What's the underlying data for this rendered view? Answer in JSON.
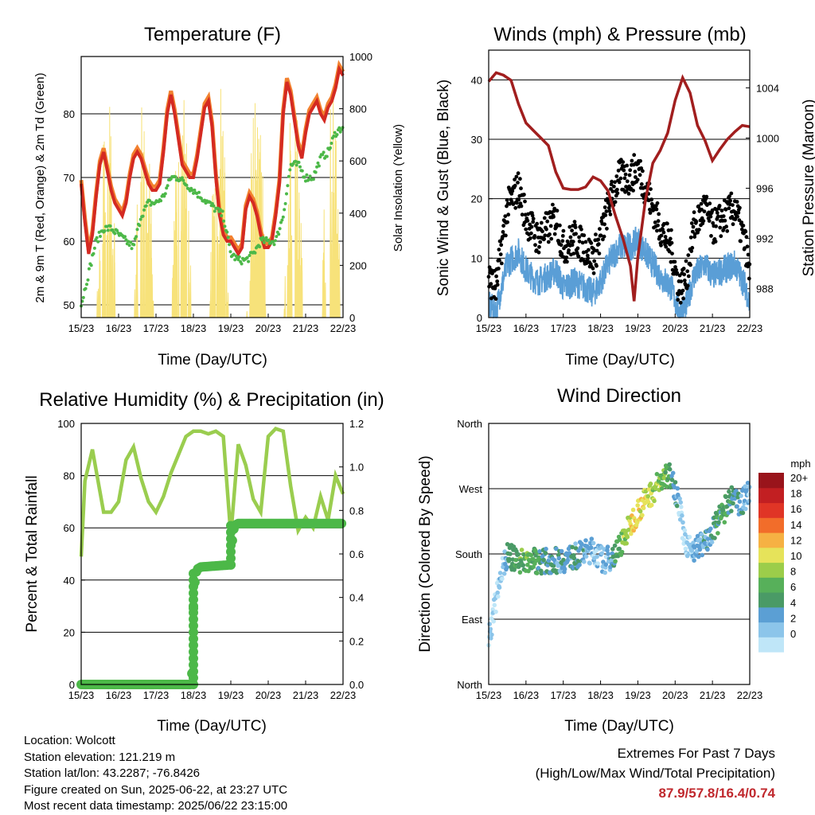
{
  "panels": {
    "temperature": {
      "title": "Temperature (F)",
      "xlabel": "Time (Day/UTC)",
      "ylabel_left": "2m & 9m T (Red, Orange) & 2m Td (Green)",
      "ylabel_right": "Solar Insolation (Yellow)"
    },
    "winds": {
      "title": "Winds (mph) & Pressure (mb)",
      "xlabel": "Time (Day/UTC)",
      "ylabel_left": "Sonic Wind & Gust (Blue, Black)",
      "ylabel_right": "Station Pressure (Maroon)"
    },
    "humidity": {
      "title": "Relative Humidity (%) & Precipitation (in)",
      "xlabel": "Time (Day/UTC)",
      "ylabel_left": "Percent & Total Rainfall"
    },
    "direction": {
      "title": "Wind Direction",
      "xlabel": "Time (Day/UTC)",
      "ylabel_left": "Direction (Colored By Speed)",
      "legend_title": "mph"
    }
  },
  "info": {
    "location": "Location: Wolcott",
    "elevation": "Station elevation: 121.219 m",
    "latlon": "Station lat/lon: 43.2287; -76.8426",
    "created": "Figure created on Sun, 2025-06-22, at 23:27 UTC",
    "recent": "Most recent data timestamp: 2025/06/22 23:15:00"
  },
  "extremes": {
    "heading": "Extremes For Past 7 Days",
    "subheading": "(High/Low/Max Wind/Total Precipitation)",
    "values": "87.9/57.8/16.4/0.74"
  },
  "colors": {
    "temp_2m": "#d42a22",
    "temp_9m": "#f2812f",
    "dewpoint": "#4cb848",
    "solar": "#f7e27a",
    "wind": "#5a9ed6",
    "gust": "#000000",
    "pressure": "#a11e1e",
    "rh": "#9acd4f",
    "precip": "#4cb848",
    "speed_scale": [
      "#bfe6f8",
      "#8cc5ea",
      "#5b9fd4",
      "#4a9a66",
      "#57b05a",
      "#9ccd4a",
      "#e6e35a",
      "#f6b143",
      "#f26d2a",
      "#e03526",
      "#c21f22",
      "#99141b"
    ]
  },
  "chart_data": [
    {
      "type": "line",
      "panel": "temperature",
      "x_ticks": [
        "15/23",
        "16/23",
        "17/23",
        "18/23",
        "19/23",
        "20/23",
        "21/23",
        "22/23"
      ],
      "x_range": [
        0,
        7
      ],
      "ylim": [
        48,
        89
      ],
      "yticks_left": [
        50,
        60,
        70,
        80
      ],
      "ylim_right": [
        0,
        1000
      ],
      "yticks_right": [
        0,
        200,
        400,
        600,
        800,
        1000
      ],
      "grid": "horizontal",
      "series": [
        {
          "key": "temp_2m",
          "x": [
            0,
            0.1,
            0.2,
            0.3,
            0.4,
            0.5,
            0.6,
            0.7,
            0.8,
            0.9,
            1.0,
            1.1,
            1.2,
            1.3,
            1.4,
            1.5,
            1.6,
            1.7,
            1.8,
            1.9,
            2.0,
            2.1,
            2.2,
            2.3,
            2.4,
            2.5,
            2.6,
            2.7,
            2.8,
            2.9,
            3.0,
            3.1,
            3.2,
            3.3,
            3.4,
            3.5,
            3.6,
            3.7,
            3.8,
            3.9,
            4.0,
            4.1,
            4.2,
            4.3,
            4.4,
            4.5,
            4.6,
            4.7,
            4.8,
            4.9,
            5.0,
            5.1,
            5.2,
            5.3,
            5.4,
            5.5,
            5.6,
            5.7,
            5.8,
            5.9,
            6.0,
            6.1,
            6.2,
            6.3,
            6.4,
            6.5,
            6.6,
            6.7,
            6.8,
            6.9,
            7.0
          ],
          "y": [
            69,
            63,
            58,
            61,
            67,
            72,
            74,
            71,
            68,
            66,
            65,
            64,
            66,
            70,
            73,
            74,
            73,
            71,
            69,
            68,
            68,
            69,
            74,
            80,
            83,
            80,
            76,
            72,
            71,
            70,
            70,
            73,
            77,
            81,
            82,
            78,
            70,
            64,
            61,
            60,
            60,
            59,
            58,
            59,
            65,
            67,
            66,
            64,
            61,
            59,
            59,
            60,
            64,
            69,
            80,
            85,
            83,
            79,
            75,
            73,
            77,
            80,
            81,
            82,
            80,
            79,
            81,
            82,
            84,
            87,
            86
          ]
        },
        {
          "key": "dewpoint",
          "x": [
            0,
            0.2,
            0.4,
            0.6,
            0.8,
            1.0,
            1.2,
            1.4,
            1.6,
            1.8,
            2.0,
            2.2,
            2.4,
            2.6,
            2.8,
            3.0,
            3.2,
            3.4,
            3.6,
            3.8,
            4.0,
            4.2,
            4.4,
            4.6,
            4.8,
            5.0,
            5.2,
            5.4,
            5.6,
            5.8,
            6.0,
            6.2,
            6.4,
            6.6,
            6.8,
            7.0
          ],
          "y": [
            50,
            55,
            60,
            62,
            62,
            61,
            60,
            59,
            64,
            66,
            66,
            67,
            70,
            70,
            69,
            68,
            67,
            66,
            65,
            64,
            58,
            57,
            57,
            58,
            60,
            60,
            60,
            64,
            72,
            72,
            70,
            70,
            73,
            74,
            77,
            78
          ]
        },
        {
          "key": "solar",
          "label": "Solar Insolation",
          "axis": "right"
        }
      ]
    },
    {
      "type": "scatter",
      "panel": "winds",
      "x_ticks": [
        "15/23",
        "16/23",
        "17/23",
        "18/23",
        "19/23",
        "20/23",
        "21/23",
        "22/23"
      ],
      "x_range": [
        0,
        7
      ],
      "ylim": [
        0,
        45
      ],
      "yticks_left": [
        0,
        10,
        20,
        30,
        40
      ],
      "ylim_right": [
        985.7,
        1007
      ],
      "yticks_right": [
        988,
        992,
        996,
        1000,
        1004
      ],
      "grid": "horizontal",
      "series": [
        {
          "key": "pressure",
          "type": "line",
          "axis": "right",
          "x": [
            0,
            0.2,
            0.4,
            0.6,
            0.8,
            1.0,
            1.2,
            1.4,
            1.6,
            1.8,
            2.0,
            2.2,
            2.4,
            2.6,
            2.8,
            3.0,
            3.2,
            3.4,
            3.6,
            3.8,
            3.9,
            4.0,
            4.2,
            4.4,
            4.6,
            4.8,
            5.0,
            5.2,
            5.4,
            5.6,
            5.8,
            6.0,
            6.2,
            6.4,
            6.6,
            6.8,
            7.0
          ],
          "y": [
            1004.5,
            1005.2,
            1005,
            1004.6,
            1002.7,
            1001.2,
            1000.6,
            1000,
            999.4,
            997.3,
            996,
            995.9,
            995.9,
            996.1,
            996.9,
            996.6,
            995.8,
            993.8,
            992,
            989.8,
            987,
            990.5,
            995,
            998,
            999,
            1000.4,
            1003,
            1004.8,
            1003.6,
            1001,
            999.8,
            998.2,
            999.1,
            999.9,
            1000.5,
            1001,
            1000.9
          ]
        },
        {
          "key": "wind",
          "label": "Sonic Wind"
        },
        {
          "key": "gust",
          "label": "Gust"
        }
      ]
    },
    {
      "type": "line",
      "panel": "humidity",
      "x_ticks": [
        "15/23",
        "16/23",
        "17/23",
        "18/23",
        "19/23",
        "20/23",
        "21/23",
        "22/23"
      ],
      "x_range": [
        0,
        7
      ],
      "ylim": [
        0,
        100
      ],
      "yticks_left": [
        0,
        20,
        40,
        60,
        80,
        100
      ],
      "ylim_right": [
        0,
        1.2
      ],
      "yticks_right": [
        "0.0",
        "0.2",
        "0.4",
        "0.6",
        "0.8",
        "1.0",
        "1.2"
      ],
      "grid": "horizontal",
      "series": [
        {
          "key": "rh",
          "x": [
            0,
            0.1,
            0.2,
            0.3,
            0.4,
            0.5,
            0.6,
            0.8,
            1.0,
            1.2,
            1.4,
            1.6,
            1.8,
            2.0,
            2.2,
            2.4,
            2.6,
            2.8,
            3.0,
            3.2,
            3.4,
            3.6,
            3.8,
            4.0,
            4.2,
            4.4,
            4.6,
            4.8,
            5.0,
            5.2,
            5.4,
            5.6,
            5.8,
            6.0,
            6.2,
            6.4,
            6.6,
            6.8,
            7.0
          ],
          "y": [
            49,
            78,
            84,
            90,
            82,
            74,
            66,
            66,
            70,
            86,
            91,
            79,
            70,
            66,
            72,
            81,
            88,
            95,
            97,
            97,
            96,
            97,
            95,
            57,
            92,
            84,
            71,
            66,
            95,
            98,
            97,
            76,
            59,
            64,
            60,
            72,
            63,
            80,
            73
          ]
        },
        {
          "key": "precip",
          "type": "step",
          "axis": "right",
          "x": [
            0,
            2.95,
            2.98,
            3.0,
            3.05,
            3.1,
            3.2,
            4.0,
            4.05,
            4.1,
            4.2,
            7.0
          ],
          "y": [
            0,
            0,
            0.15,
            0.35,
            0.5,
            0.53,
            0.54,
            0.55,
            0.69,
            0.73,
            0.74,
            0.74
          ]
        }
      ]
    },
    {
      "type": "scatter",
      "panel": "direction",
      "x_ticks": [
        "15/23",
        "16/23",
        "17/23",
        "18/23",
        "19/23",
        "20/23",
        "21/23",
        "22/23"
      ],
      "x_range": [
        0,
        7
      ],
      "ytick_labels": [
        "North",
        "East",
        "South",
        "West",
        "North"
      ],
      "ylim": [
        0,
        360
      ],
      "grid": "horizontal",
      "legend": {
        "title": "mph",
        "labels": [
          "20+",
          "18",
          "16",
          "14",
          "12",
          "10",
          "8",
          "6",
          "4",
          "2",
          "0"
        ],
        "placement": "right"
      },
      "series": [
        {
          "key": "direction",
          "label": "Direction (Colored By Speed)"
        }
      ]
    }
  ]
}
